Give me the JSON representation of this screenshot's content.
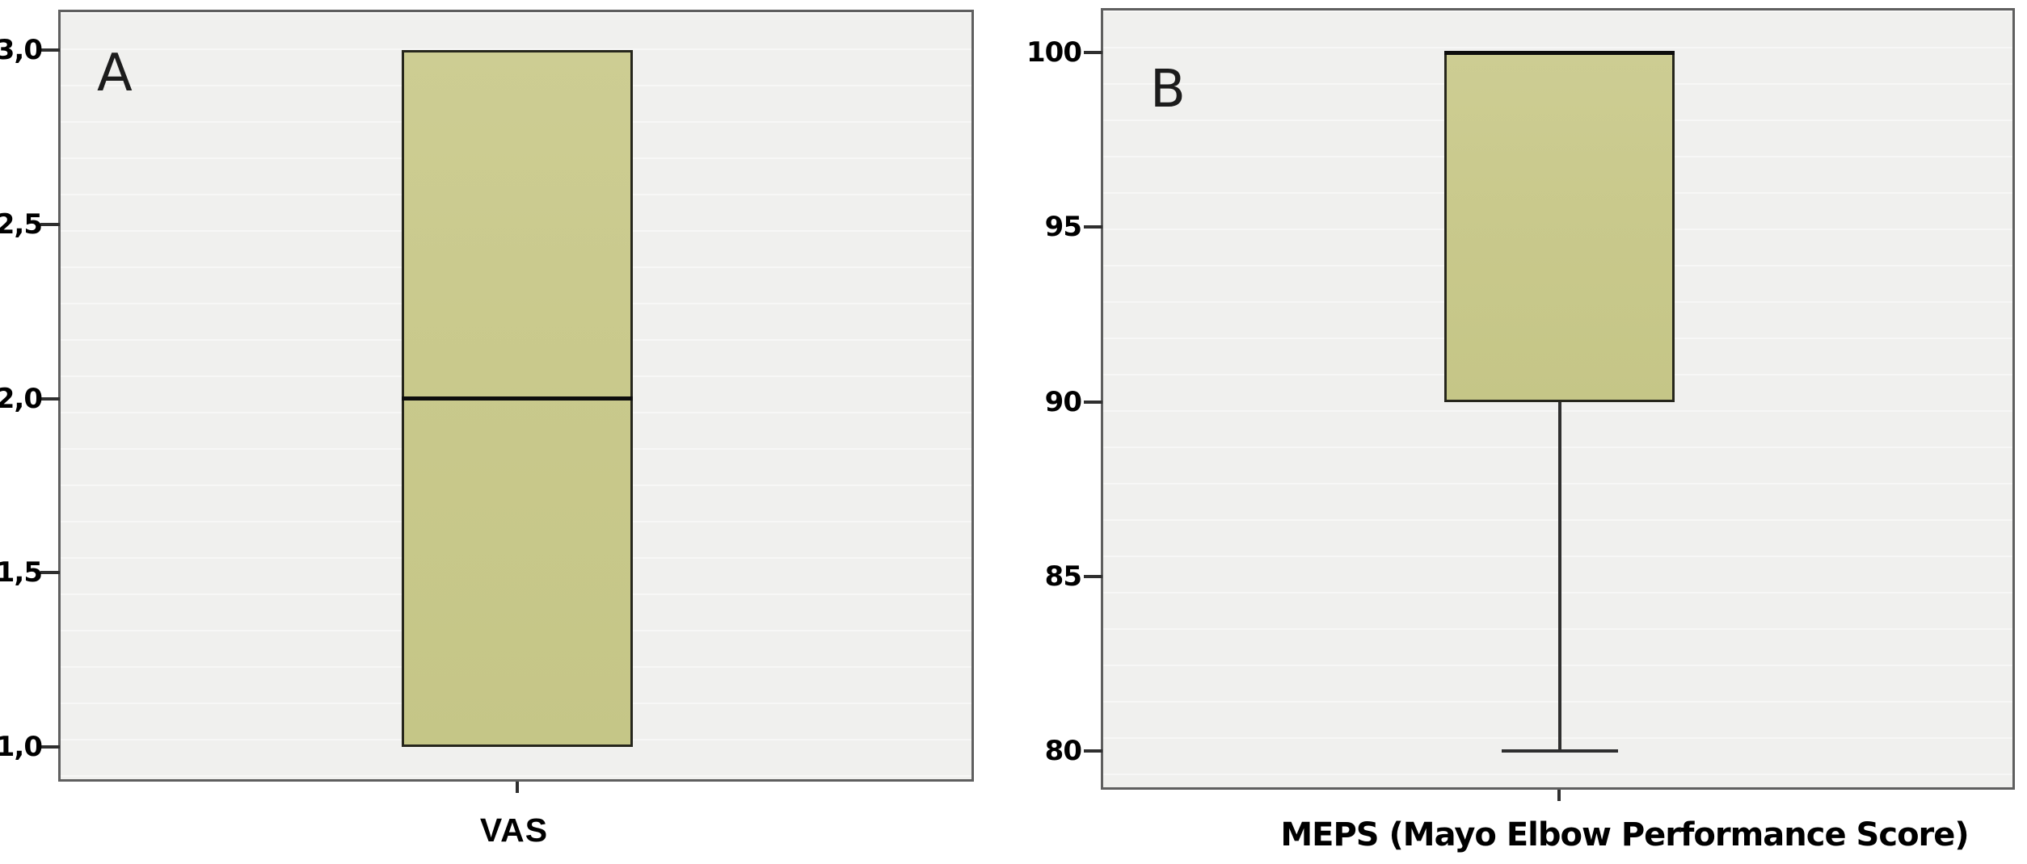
{
  "figure": {
    "colors": {
      "page_bg": "#ffffff",
      "plot_bg": "#f0f0ee",
      "frame_border": "#5f5f5f",
      "box_fill": "#c9c98c",
      "box_border": "#26261c",
      "median": "#0d0d0d",
      "whisker": "#2f2f2f",
      "text": "#000000"
    }
  },
  "chart_data": [
    {
      "type": "box",
      "panel_label": "A",
      "xlabel": "VAS",
      "x_categories": [
        "VAS"
      ],
      "ylim": [
        0.9,
        3.12
      ],
      "yticks": [
        3.0,
        2.5,
        2.0,
        1.5,
        1.0
      ],
      "ytick_labels": [
        "3,0",
        "2,5",
        "2,0",
        "1,5",
        "1,0"
      ],
      "grid": false,
      "legend": null,
      "series": [
        {
          "name": "VAS",
          "whisker_low": 1.0,
          "q1": 1.0,
          "median": 2.0,
          "q3": 3.0,
          "whisker_high": 3.0,
          "outliers": []
        }
      ]
    },
    {
      "type": "box",
      "panel_label": "B",
      "xlabel": "MEPS (Mayo Elbow Performance Score)",
      "x_categories": [
        "MEPS"
      ],
      "ylim": [
        78.9,
        101.3
      ],
      "yticks": [
        100,
        95,
        90,
        85,
        80
      ],
      "ytick_labels": [
        "100",
        "95",
        "90",
        "85",
        "80"
      ],
      "grid": false,
      "legend": null,
      "series": [
        {
          "name": "MEPS",
          "whisker_low": 80,
          "q1": 90,
          "median": 100,
          "q3": 100,
          "whisker_high": 100,
          "outliers": []
        }
      ]
    }
  ]
}
